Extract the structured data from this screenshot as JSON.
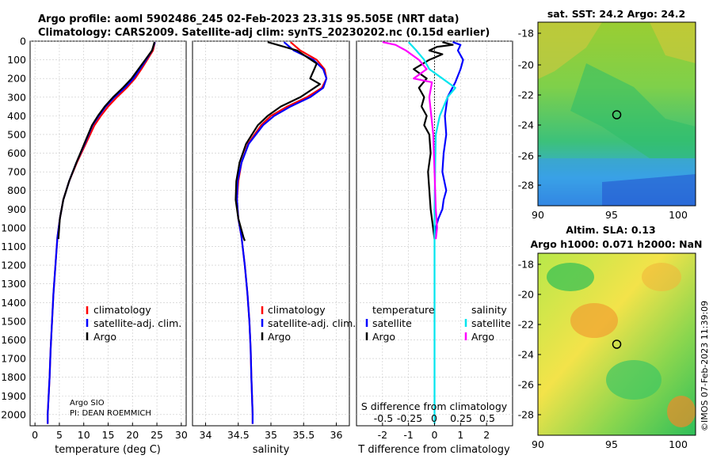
{
  "titles": {
    "line1": "Argo profile: aoml 5902486_245 02-Feb-2023 23.31S 95.505E (NRT data)",
    "line2": "Climatology: CARS2009. Satellite-adj clim: synTS_20230202.nc (0.15d earlier)"
  },
  "depth_axis": {
    "ticks": [
      0,
      100,
      200,
      300,
      400,
      500,
      600,
      700,
      800,
      900,
      1000,
      1100,
      1200,
      1300,
      1400,
      1500,
      1600,
      1700,
      1800,
      1900,
      2000
    ],
    "ticks_labels": [
      "0",
      "100",
      "200",
      "300",
      "400",
      "500",
      "600",
      "700",
      "800",
      "900",
      "1000",
      "1100",
      "1200",
      "1300",
      "1400",
      "1500",
      "1600",
      "1700",
      "1800",
      "1900",
      "2000"
    ]
  },
  "colors": {
    "climatology": "#ff0000",
    "satellite": "#0000ff",
    "argo": "#000000",
    "sal_satellite": "#00e5ee",
    "sal_argo": "#ff00ff"
  },
  "chart_data": [
    {
      "id": "temperature",
      "type": "line",
      "xlabel": "temperature (deg C)",
      "ylabel": "depth",
      "xlim": [
        -1,
        31
      ],
      "ylim": [
        2060,
        0
      ],
      "xticks": [
        0,
        5,
        10,
        15,
        20,
        25,
        30
      ],
      "xtick_labels": [
        "0",
        "5",
        "10",
        "15",
        "20",
        "25",
        "30"
      ],
      "legend": [
        "climatology",
        "satellite-adj. clim.",
        "Argo"
      ],
      "credit": [
        "Argo SIO",
        "PI: DEAN ROEMMICH"
      ],
      "series": [
        {
          "name": "climatology",
          "x": [
            24.6,
            24.2,
            23.0,
            21.8,
            20.5,
            18.8,
            16.8,
            15.0,
            13.5,
            12.2,
            10.4,
            8.6,
            7.0,
            5.8,
            5.1,
            4.6,
            4.2,
            3.8,
            3.5,
            3.2,
            3.0,
            2.8,
            2.6,
            2.6
          ],
          "y": [
            5,
            50,
            100,
            150,
            200,
            250,
            300,
            350,
            400,
            450,
            550,
            650,
            750,
            850,
            950,
            1050,
            1200,
            1350,
            1500,
            1650,
            1800,
            1900,
            2000,
            2050
          ]
        },
        {
          "name": "satellite-adj. clim.",
          "x": [
            24.6,
            24.0,
            22.8,
            21.5,
            20.2,
            18.4,
            16.3,
            14.5,
            13.1,
            11.8,
            10.2,
            8.5,
            7.0,
            5.8,
            5.1,
            4.6,
            4.2,
            3.8,
            3.5,
            3.2,
            3.0,
            2.8,
            2.6,
            2.6
          ],
          "y": [
            5,
            50,
            100,
            150,
            200,
            250,
            300,
            350,
            400,
            450,
            550,
            650,
            750,
            850,
            950,
            1050,
            1200,
            1350,
            1500,
            1650,
            1800,
            1900,
            2000,
            2050
          ]
        },
        {
          "name": "Argo",
          "x": [
            24.5,
            24.0,
            22.6,
            21.2,
            19.8,
            18.0,
            16.0,
            14.3,
            12.9,
            11.7,
            10.1,
            8.5,
            7.0,
            5.8,
            5.1,
            4.8
          ],
          "y": [
            5,
            50,
            100,
            150,
            200,
            250,
            300,
            350,
            400,
            450,
            550,
            650,
            750,
            850,
            950,
            1060
          ]
        }
      ]
    },
    {
      "id": "salinity",
      "type": "line",
      "xlabel": "salinity",
      "xlim": [
        33.8,
        36.2
      ],
      "ylim": [
        2060,
        0
      ],
      "xticks": [
        34,
        34.5,
        35,
        35.5,
        36
      ],
      "xtick_labels": [
        "34",
        "34.5",
        "35",
        "35.5",
        "36"
      ],
      "legend": [
        "climatology",
        "satellite-adj. clim.",
        "Argo"
      ],
      "series": [
        {
          "name": "climatology",
          "x": [
            35.3,
            35.45,
            35.7,
            35.82,
            35.85,
            35.78,
            35.55,
            35.25,
            35.0,
            34.85,
            34.65,
            34.55,
            34.5,
            34.48,
            34.5,
            34.55,
            34.6,
            34.64,
            34.67,
            34.69,
            34.7,
            34.71,
            34.72,
            34.72
          ],
          "y": [
            5,
            50,
            100,
            150,
            200,
            250,
            300,
            350,
            400,
            450,
            550,
            650,
            750,
            850,
            950,
            1050,
            1200,
            1350,
            1500,
            1650,
            1800,
            1900,
            2000,
            2050
          ]
        },
        {
          "name": "satellite-adj. clim.",
          "x": [
            35.2,
            35.35,
            35.65,
            35.8,
            35.85,
            35.8,
            35.6,
            35.3,
            35.05,
            34.88,
            34.66,
            34.55,
            34.49,
            34.48,
            34.5,
            34.55,
            34.6,
            34.64,
            34.67,
            34.69,
            34.7,
            34.71,
            34.72,
            34.72
          ],
          "y": [
            5,
            50,
            100,
            150,
            200,
            250,
            300,
            350,
            400,
            450,
            550,
            650,
            750,
            850,
            950,
            1050,
            1200,
            1350,
            1500,
            1650,
            1800,
            1900,
            2000,
            2050
          ]
        },
        {
          "name": "Argo",
          "x": [
            34.95,
            35.1,
            35.4,
            35.7,
            35.6,
            35.75,
            35.45,
            35.15,
            34.95,
            34.8,
            34.62,
            34.52,
            34.47,
            34.46,
            34.5,
            34.58,
            34.6
          ],
          "y": [
            5,
            20,
            50,
            120,
            200,
            230,
            300,
            350,
            400,
            450,
            550,
            650,
            750,
            850,
            950,
            1050,
            1070
          ]
        }
      ]
    },
    {
      "id": "differences",
      "type": "line",
      "xlabel": "T difference from climatology",
      "xlabel2": "S difference from climatology",
      "xlim": [
        -3,
        3
      ],
      "ylim": [
        2060,
        0
      ],
      "xticks": [
        -2,
        -1,
        0,
        1,
        2
      ],
      "xtick_labels": [
        "-2",
        "-1",
        "0",
        "1",
        "2"
      ],
      "s_ticks_labels": [
        "-0.5",
        "-0.25",
        "0",
        "0.25",
        "0.5"
      ],
      "legend_temperature_title": "temperature",
      "legend_salinity_title": "salinity",
      "legend_temperature": [
        "satellite",
        "Argo"
      ],
      "legend_salinity": [
        "satellite",
        "Argo"
      ],
      "series": [
        {
          "name": "T satellite",
          "x": [
            0.7,
            1.0,
            0.9,
            1.1,
            1.0,
            0.8,
            0.5,
            0.4,
            0.45,
            0.35,
            0.3,
            0.45,
            0.35,
            0.3,
            0.15,
            0.05,
            0.0
          ],
          "y": [
            5,
            20,
            50,
            100,
            150,
            220,
            300,
            400,
            500,
            600,
            700,
            800,
            850,
            900,
            950,
            1000,
            1060
          ]
        },
        {
          "name": "T Argo",
          "x": [
            0.3,
            0.7,
            0.1,
            -0.2,
            0.3,
            -0.2,
            -0.8,
            -0.3,
            -0.6,
            -0.4,
            -0.5,
            -0.3,
            -0.4,
            -0.2,
            -0.15,
            -0.25,
            -0.15,
            0.0
          ],
          "y": [
            5,
            20,
            30,
            50,
            70,
            100,
            150,
            200,
            250,
            300,
            350,
            400,
            450,
            500,
            600,
            700,
            900,
            1060
          ]
        },
        {
          "name": "S satellite",
          "x": [
            -1.0,
            -0.9,
            -0.7,
            -0.4,
            -0.2,
            0.3,
            0.8,
            0.5,
            0.2,
            0.05,
            0.02,
            0.0,
            0.0,
            0.0,
            0.0
          ],
          "y": [
            5,
            20,
            50,
            100,
            150,
            200,
            250,
            300,
            400,
            500,
            700,
            900,
            1200,
            1600,
            2050
          ]
        },
        {
          "name": "S Argo",
          "x": [
            -2.0,
            -1.5,
            -1.1,
            -0.6,
            -0.3,
            -0.8,
            -0.1,
            -0.2,
            -0.05,
            0.0,
            0.05,
            0.1,
            0.05
          ],
          "y": [
            5,
            20,
            50,
            100,
            150,
            200,
            220,
            300,
            500,
            700,
            900,
            1000,
            1060
          ]
        }
      ]
    }
  ],
  "map_sst": {
    "title": "sat. SST: 24.2 Argo: 24.2",
    "xticks": [
      "90",
      "95",
      "100"
    ],
    "yticks": [
      "-18",
      "-20",
      "-22",
      "-24",
      "-26",
      "-28"
    ]
  },
  "map_sla": {
    "title1": "Altim. SLA: 0.13",
    "title2": "Argo h1000: 0.071 h2000: NaN",
    "xticks": [
      "90",
      "95",
      "100"
    ],
    "yticks": [
      "-18",
      "-20",
      "-22",
      "-24",
      "-26",
      "-28"
    ]
  },
  "credit_vertical": "©IMOS 07-Feb-2023 11:39:09"
}
